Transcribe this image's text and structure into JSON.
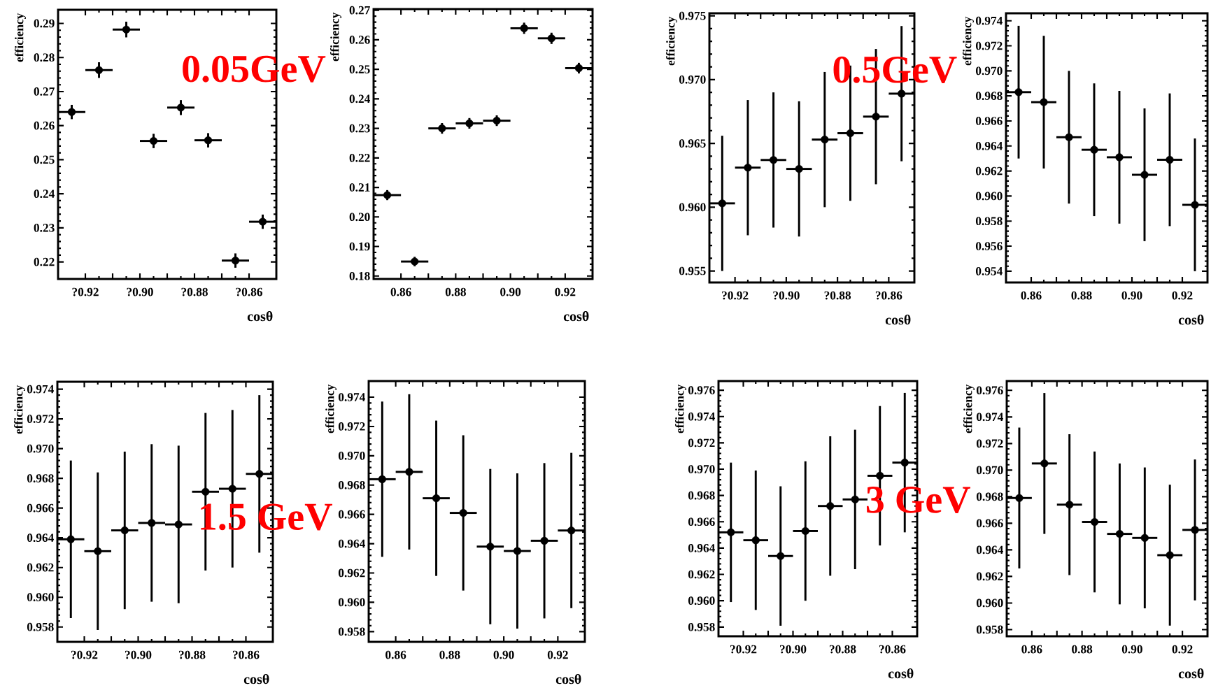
{
  "chart_data": [
    {
      "type": "scatter",
      "color": "#000000",
      "marker": "circle",
      "xlabel": "cosθ",
      "ylabel": "efficiency",
      "annotations": [
        "0.05GeV"
      ],
      "x": [
        -0.925,
        -0.915,
        -0.905,
        -0.895,
        -0.885,
        -0.875,
        -0.865,
        -0.855
      ],
      "values": [
        0.264,
        0.2763,
        0.2882,
        0.2555,
        0.2653,
        0.2557,
        0.2204,
        0.2318
      ],
      "errors": [
        0.0021,
        0.0023,
        0.0023,
        0.0021,
        0.0022,
        0.0021,
        0.0021,
        0.0021
      ],
      "xerrors": [
        0.005,
        0.005,
        0.005,
        0.005,
        0.005,
        0.005,
        0.005,
        0.005
      ],
      "xlim": [
        -0.93,
        -0.85
      ],
      "ylim": [
        0.215,
        0.294
      ],
      "xticks": [
        {
          "value": -0.92,
          "label": "?0.92"
        },
        {
          "value": -0.91,
          "label": null
        },
        {
          "value": -0.9,
          "label": "?0.90"
        },
        {
          "value": -0.89,
          "label": null
        },
        {
          "value": -0.88,
          "label": "?0.88"
        },
        {
          "value": -0.87,
          "label": null
        },
        {
          "value": -0.86,
          "label": "?0.86"
        }
      ],
      "yticks": [
        {
          "value": 0.22,
          "label": "0.22"
        },
        {
          "value": 0.23,
          "label": "0.23"
        },
        {
          "value": 0.24,
          "label": "0.24"
        },
        {
          "value": 0.25,
          "label": "0.25"
        },
        {
          "value": 0.26,
          "label": "0.26"
        },
        {
          "value": 0.27,
          "label": "0.27"
        },
        {
          "value": 0.28,
          "label": "0.28"
        },
        {
          "value": 0.29,
          "label": "0.29"
        }
      ]
    },
    {
      "type": "scatter",
      "color": "#000000",
      "marker": "circle",
      "xlabel": "cosθ",
      "ylabel": "efficiency",
      "x": [
        0.855,
        0.865,
        0.875,
        0.885,
        0.895,
        0.905,
        0.915,
        0.925
      ],
      "values": [
        0.2074,
        0.1849,
        0.23,
        0.2317,
        0.2326,
        0.2639,
        0.2605,
        0.2504
      ],
      "errors": [
        0.0017,
        0.0016,
        0.0018,
        0.0018,
        0.0018,
        0.0019,
        0.0019,
        0.0018
      ],
      "xerrors": [
        0.005,
        0.005,
        0.005,
        0.005,
        0.005,
        0.005,
        0.005,
        0.005
      ],
      "xlim": [
        0.85,
        0.93
      ],
      "ylim": [
        0.179,
        0.2704
      ],
      "xticks": [
        {
          "value": 0.86,
          "label": "0.86"
        },
        {
          "value": 0.87,
          "label": null
        },
        {
          "value": 0.88,
          "label": "0.88"
        },
        {
          "value": 0.89,
          "label": null
        },
        {
          "value": 0.9,
          "label": "0.90"
        },
        {
          "value": 0.91,
          "label": null
        },
        {
          "value": 0.92,
          "label": "0.92"
        }
      ],
      "yticks": [
        {
          "value": 0.18,
          "label": "0.18"
        },
        {
          "value": 0.19,
          "label": "0.19"
        },
        {
          "value": 0.2,
          "label": "0.20"
        },
        {
          "value": 0.21,
          "label": "0.21"
        },
        {
          "value": 0.22,
          "label": "0.22"
        },
        {
          "value": 0.23,
          "label": "0.23"
        },
        {
          "value": 0.24,
          "label": "0.24"
        },
        {
          "value": 0.25,
          "label": "0.25"
        },
        {
          "value": 0.26,
          "label": "0.26"
        },
        {
          "value": 0.27,
          "label": "0.27"
        }
      ]
    },
    {
      "type": "scatter",
      "color": "#000000",
      "marker": "circle",
      "xlabel": "cosθ",
      "ylabel": "efficiency",
      "annotations": [
        "0.5GeV"
      ],
      "x": [
        -0.925,
        -0.915,
        -0.905,
        -0.895,
        -0.885,
        -0.875,
        -0.865,
        -0.855
      ],
      "values": [
        0.9603,
        0.9631,
        0.9637,
        0.963,
        0.9653,
        0.9658,
        0.9671,
        0.9689
      ],
      "errors": [
        0.0053,
        0.0053,
        0.0053,
        0.0053,
        0.0053,
        0.0053,
        0.0053,
        0.0053
      ],
      "xerrors": [
        0.005,
        0.005,
        0.005,
        0.005,
        0.005,
        0.005,
        0.005,
        0.005
      ],
      "xlim": [
        -0.93,
        -0.85
      ],
      "ylim": [
        0.9541,
        0.9752
      ],
      "xticks": [
        {
          "value": -0.92,
          "label": "?0.92"
        },
        {
          "value": -0.91,
          "label": null
        },
        {
          "value": -0.9,
          "label": "?0.90"
        },
        {
          "value": -0.89,
          "label": null
        },
        {
          "value": -0.88,
          "label": "?0.88"
        },
        {
          "value": -0.87,
          "label": null
        },
        {
          "value": -0.86,
          "label": "?0.86"
        }
      ],
      "yticks": [
        {
          "value": 0.955,
          "label": "0.955"
        },
        {
          "value": 0.96,
          "label": "0.960"
        },
        {
          "value": 0.965,
          "label": "0.965"
        },
        {
          "value": 0.97,
          "label": "0.970"
        },
        {
          "value": 0.975,
          "label": "0.975"
        }
      ]
    },
    {
      "type": "scatter",
      "color": "#000000",
      "marker": "circle",
      "xlabel": "cosθ",
      "ylabel": "efficiency",
      "x": [
        0.855,
        0.865,
        0.875,
        0.885,
        0.895,
        0.905,
        0.915,
        0.925
      ],
      "values": [
        0.9683,
        0.9675,
        0.9647,
        0.9637,
        0.9631,
        0.9617,
        0.9629,
        0.9593
      ],
      "errors": [
        0.0053,
        0.0053,
        0.0053,
        0.0053,
        0.0053,
        0.0053,
        0.0053,
        0.0053
      ],
      "xerrors": [
        0.005,
        0.005,
        0.005,
        0.005,
        0.005,
        0.005,
        0.005,
        0.005
      ],
      "xlim": [
        0.85,
        0.93
      ],
      "ylim": [
        0.9531,
        0.9746
      ],
      "xticks": [
        {
          "value": 0.86,
          "label": "0.86"
        },
        {
          "value": 0.87,
          "label": null
        },
        {
          "value": 0.88,
          "label": "0.88"
        },
        {
          "value": 0.89,
          "label": null
        },
        {
          "value": 0.9,
          "label": "0.90"
        },
        {
          "value": 0.91,
          "label": null
        },
        {
          "value": 0.92,
          "label": "0.92"
        }
      ],
      "yticks": [
        {
          "value": 0.954,
          "label": "0.954"
        },
        {
          "value": 0.956,
          "label": "0.956"
        },
        {
          "value": 0.958,
          "label": "0.958"
        },
        {
          "value": 0.96,
          "label": "0.960"
        },
        {
          "value": 0.962,
          "label": "0.962"
        },
        {
          "value": 0.964,
          "label": "0.964"
        },
        {
          "value": 0.966,
          "label": "0.966"
        },
        {
          "value": 0.968,
          "label": "0.968"
        },
        {
          "value": 0.97,
          "label": "0.970"
        },
        {
          "value": 0.972,
          "label": "0.972"
        },
        {
          "value": 0.974,
          "label": "0.974"
        }
      ]
    },
    {
      "type": "scatter",
      "color": "#000000",
      "marker": "circle",
      "xlabel": "cosθ",
      "ylabel": "efficiency",
      "annotations": [
        "1.5 GeV"
      ],
      "x": [
        -0.925,
        -0.915,
        -0.905,
        -0.895,
        -0.885,
        -0.875,
        -0.865,
        -0.855
      ],
      "values": [
        0.9639,
        0.9631,
        0.9645,
        0.965,
        0.9649,
        0.9671,
        0.9673,
        0.9683
      ],
      "errors": [
        0.0053,
        0.0053,
        0.0053,
        0.0053,
        0.0053,
        0.0053,
        0.0053,
        0.0053
      ],
      "xerrors": [
        0.005,
        0.005,
        0.005,
        0.005,
        0.005,
        0.005,
        0.005,
        0.005
      ],
      "xlim": [
        -0.93,
        -0.85
      ],
      "ylim": [
        0.957,
        0.9745
      ],
      "xticks": [
        {
          "value": -0.92,
          "label": "?0.92"
        },
        {
          "value": -0.91,
          "label": null
        },
        {
          "value": -0.9,
          "label": "?0.90"
        },
        {
          "value": -0.89,
          "label": null
        },
        {
          "value": -0.88,
          "label": "?0.88"
        },
        {
          "value": -0.87,
          "label": null
        },
        {
          "value": -0.86,
          "label": "?0.86"
        }
      ],
      "yticks": [
        {
          "value": 0.958,
          "label": "0.958"
        },
        {
          "value": 0.96,
          "label": "0.960"
        },
        {
          "value": 0.962,
          "label": "0.962"
        },
        {
          "value": 0.964,
          "label": "0.964"
        },
        {
          "value": 0.966,
          "label": "0.966"
        },
        {
          "value": 0.968,
          "label": "0.968"
        },
        {
          "value": 0.97,
          "label": "0.970"
        },
        {
          "value": 0.972,
          "label": "0.972"
        },
        {
          "value": 0.974,
          "label": "0.974"
        }
      ]
    },
    {
      "type": "scatter",
      "color": "#000000",
      "marker": "circle",
      "xlabel": "cosθ",
      "ylabel": "efficiency",
      "x": [
        0.855,
        0.865,
        0.875,
        0.885,
        0.895,
        0.905,
        0.915,
        0.925
      ],
      "values": [
        0.9684,
        0.9689,
        0.9671,
        0.9661,
        0.9638,
        0.9635,
        0.9642,
        0.9649
      ],
      "errors": [
        0.0053,
        0.0053,
        0.0053,
        0.0053,
        0.0053,
        0.0053,
        0.0053,
        0.0053
      ],
      "xerrors": [
        0.005,
        0.005,
        0.005,
        0.005,
        0.005,
        0.005,
        0.005,
        0.005
      ],
      "xlim": [
        0.85,
        0.93
      ],
      "ylim": [
        0.9573,
        0.9751
      ],
      "xticks": [
        {
          "value": 0.86,
          "label": "0.86"
        },
        {
          "value": 0.87,
          "label": null
        },
        {
          "value": 0.88,
          "label": "0.88"
        },
        {
          "value": 0.89,
          "label": null
        },
        {
          "value": 0.9,
          "label": "0.90"
        },
        {
          "value": 0.91,
          "label": null
        },
        {
          "value": 0.92,
          "label": "0.92"
        }
      ],
      "yticks": [
        {
          "value": 0.958,
          "label": "0.958"
        },
        {
          "value": 0.96,
          "label": "0.960"
        },
        {
          "value": 0.962,
          "label": "0.962"
        },
        {
          "value": 0.964,
          "label": "0.964"
        },
        {
          "value": 0.966,
          "label": "0.966"
        },
        {
          "value": 0.968,
          "label": "0.968"
        },
        {
          "value": 0.97,
          "label": "0.970"
        },
        {
          "value": 0.972,
          "label": "0.972"
        },
        {
          "value": 0.974,
          "label": "0.974"
        }
      ]
    },
    {
      "type": "scatter",
      "color": "#000000",
      "marker": "circle",
      "xlabel": "cosθ",
      "ylabel": "efficiency",
      "annotations": [
        "3 GeV"
      ],
      "x": [
        -0.925,
        -0.915,
        -0.905,
        -0.895,
        -0.885,
        -0.875,
        -0.865,
        -0.855
      ],
      "values": [
        0.9652,
        0.9646,
        0.9634,
        0.9653,
        0.9672,
        0.9677,
        0.9695,
        0.9705
      ],
      "errors": [
        0.0053,
        0.0053,
        0.0053,
        0.0053,
        0.0053,
        0.0053,
        0.0053,
        0.0053
      ],
      "xerrors": [
        0.005,
        0.005,
        0.005,
        0.005,
        0.005,
        0.005,
        0.005,
        0.005
      ],
      "xlim": [
        -0.93,
        -0.85
      ],
      "ylim": [
        0.9573,
        0.9767
      ],
      "xticks": [
        {
          "value": -0.92,
          "label": "?0.92"
        },
        {
          "value": -0.91,
          "label": null
        },
        {
          "value": -0.9,
          "label": "?0.90"
        },
        {
          "value": -0.89,
          "label": null
        },
        {
          "value": -0.88,
          "label": "?0.88"
        },
        {
          "value": -0.87,
          "label": null
        },
        {
          "value": -0.86,
          "label": "?0.86"
        }
      ],
      "yticks": [
        {
          "value": 0.958,
          "label": "0.958"
        },
        {
          "value": 0.96,
          "label": "0.960"
        },
        {
          "value": 0.962,
          "label": "0.962"
        },
        {
          "value": 0.964,
          "label": "0.964"
        },
        {
          "value": 0.966,
          "label": "0.966"
        },
        {
          "value": 0.968,
          "label": "0.968"
        },
        {
          "value": 0.97,
          "label": "0.970"
        },
        {
          "value": 0.972,
          "label": "0.972"
        },
        {
          "value": 0.974,
          "label": "0.974"
        },
        {
          "value": 0.976,
          "label": "0.976"
        }
      ]
    },
    {
      "type": "scatter",
      "color": "#000000",
      "marker": "circle",
      "xlabel": "cosθ",
      "ylabel": "efficiency",
      "x": [
        0.855,
        0.865,
        0.875,
        0.885,
        0.895,
        0.905,
        0.915,
        0.925
      ],
      "values": [
        0.9679,
        0.9705,
        0.9674,
        0.9661,
        0.9652,
        0.9649,
        0.9636,
        0.9655
      ],
      "errors": [
        0.0053,
        0.0053,
        0.0053,
        0.0053,
        0.0053,
        0.0053,
        0.0053,
        0.0053
      ],
      "xerrors": [
        0.005,
        0.005,
        0.005,
        0.005,
        0.005,
        0.005,
        0.005,
        0.005
      ],
      "xlim": [
        0.85,
        0.93
      ],
      "ylim": [
        0.9575,
        0.9767
      ],
      "xticks": [
        {
          "value": 0.86,
          "label": "0.86"
        },
        {
          "value": 0.87,
          "label": null
        },
        {
          "value": 0.88,
          "label": "0.88"
        },
        {
          "value": 0.89,
          "label": null
        },
        {
          "value": 0.9,
          "label": "0.90"
        },
        {
          "value": 0.91,
          "label": null
        },
        {
          "value": 0.92,
          "label": "0.92"
        }
      ],
      "yticks": [
        {
          "value": 0.958,
          "label": "0.958"
        },
        {
          "value": 0.96,
          "label": "0.960"
        },
        {
          "value": 0.962,
          "label": "0.962"
        },
        {
          "value": 0.964,
          "label": "0.964"
        },
        {
          "value": 0.966,
          "label": "0.966"
        },
        {
          "value": 0.968,
          "label": "0.968"
        },
        {
          "value": 0.97,
          "label": "0.970"
        },
        {
          "value": 0.972,
          "label": "0.972"
        },
        {
          "value": 0.974,
          "label": "0.974"
        },
        {
          "value": 0.976,
          "label": "0.976"
        }
      ]
    }
  ]
}
